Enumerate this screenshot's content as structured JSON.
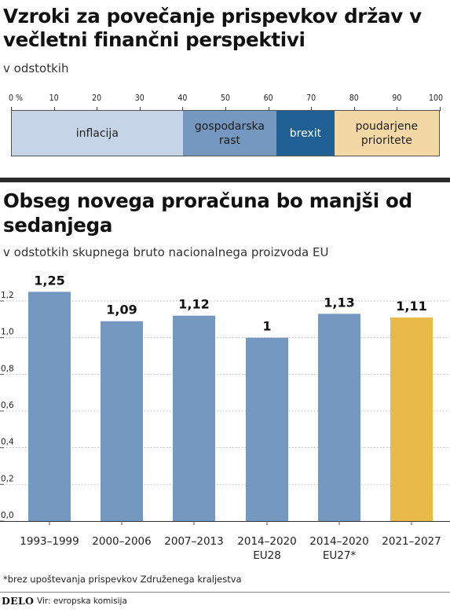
{
  "chart1": {
    "title": "Vzroki za povečanje prispevkov držav v večletni finančni perspektivi",
    "subtitle": "v odstotkih",
    "tick_labels": [
      "0 %",
      "10",
      "20",
      "30",
      "40",
      "50",
      "60",
      "70",
      "80",
      "90",
      "100"
    ]
  },
  "chart2": {
    "title": "Obseg novega proračuna bo manjši od sedanjega",
    "subtitle": "v odstotkih skupnega bruto nacionalnega proizvoda EU",
    "y_tick_labels": [
      "0,0",
      "0,2",
      "0,4",
      "0,6",
      "0,8",
      "1,0",
      "1,2"
    ]
  },
  "chart_data": [
    {
      "type": "bar",
      "orientation": "horizontal-stacked",
      "title": "Vzroki za povečanje prispevkov držav v večletni finančni perspektivi",
      "subtitle": "v odstotkih",
      "xlim": [
        0,
        100
      ],
      "series": [
        {
          "name": "inflacija",
          "label_lines": [
            "inflacija"
          ],
          "value": 40,
          "color": "#c5d4e6",
          "text_color": "#222222"
        },
        {
          "name": "gospodarska rast",
          "label_lines": [
            "gospodarska",
            "rast"
          ],
          "value": 22,
          "color": "#7598c0",
          "text_color": "#1a1a1a"
        },
        {
          "name": "brexit",
          "label_lines": [
            "brexit"
          ],
          "value": 13.5,
          "color": "#1f5f94",
          "text_color": "#ffffff"
        },
        {
          "name": "poudarjene prioritete",
          "label_lines": [
            "poudarjene",
            "prioritete"
          ],
          "value": 24.5,
          "color": "#f3d7a4",
          "text_color": "#222222"
        }
      ]
    },
    {
      "type": "bar",
      "title": "Obseg novega proračuna bo manjši od sedanjega",
      "subtitle": "v odstotkih skupnega bruto nacionalnega proizvoda EU",
      "categories": [
        [
          "1993–1999"
        ],
        [
          "2000–2006"
        ],
        [
          "2007–2013"
        ],
        [
          "2014–2020",
          "EU28"
        ],
        [
          "2014–2020",
          "EU27*"
        ],
        [
          "2021–2027"
        ]
      ],
      "values": [
        1.25,
        1.09,
        1.12,
        1,
        1.13,
        1.11
      ],
      "value_labels": [
        "1,25",
        "1,09",
        "1,12",
        "1",
        "1,13",
        "1,11"
      ],
      "colors": [
        "#7598c0",
        "#7598c0",
        "#7598c0",
        "#7598c0",
        "#7598c0",
        "#e9ba48"
      ],
      "ylim": [
        0,
        1.3
      ],
      "y_ticks": [
        0,
        0.2,
        0.4,
        0.6,
        0.8,
        1.0,
        1.2
      ],
      "grid": false
    }
  ],
  "footnote": "*brez upoštevanja prispevkov Združenega kraljestva",
  "logo": "DELO",
  "source": "Vir: evropska komisija"
}
